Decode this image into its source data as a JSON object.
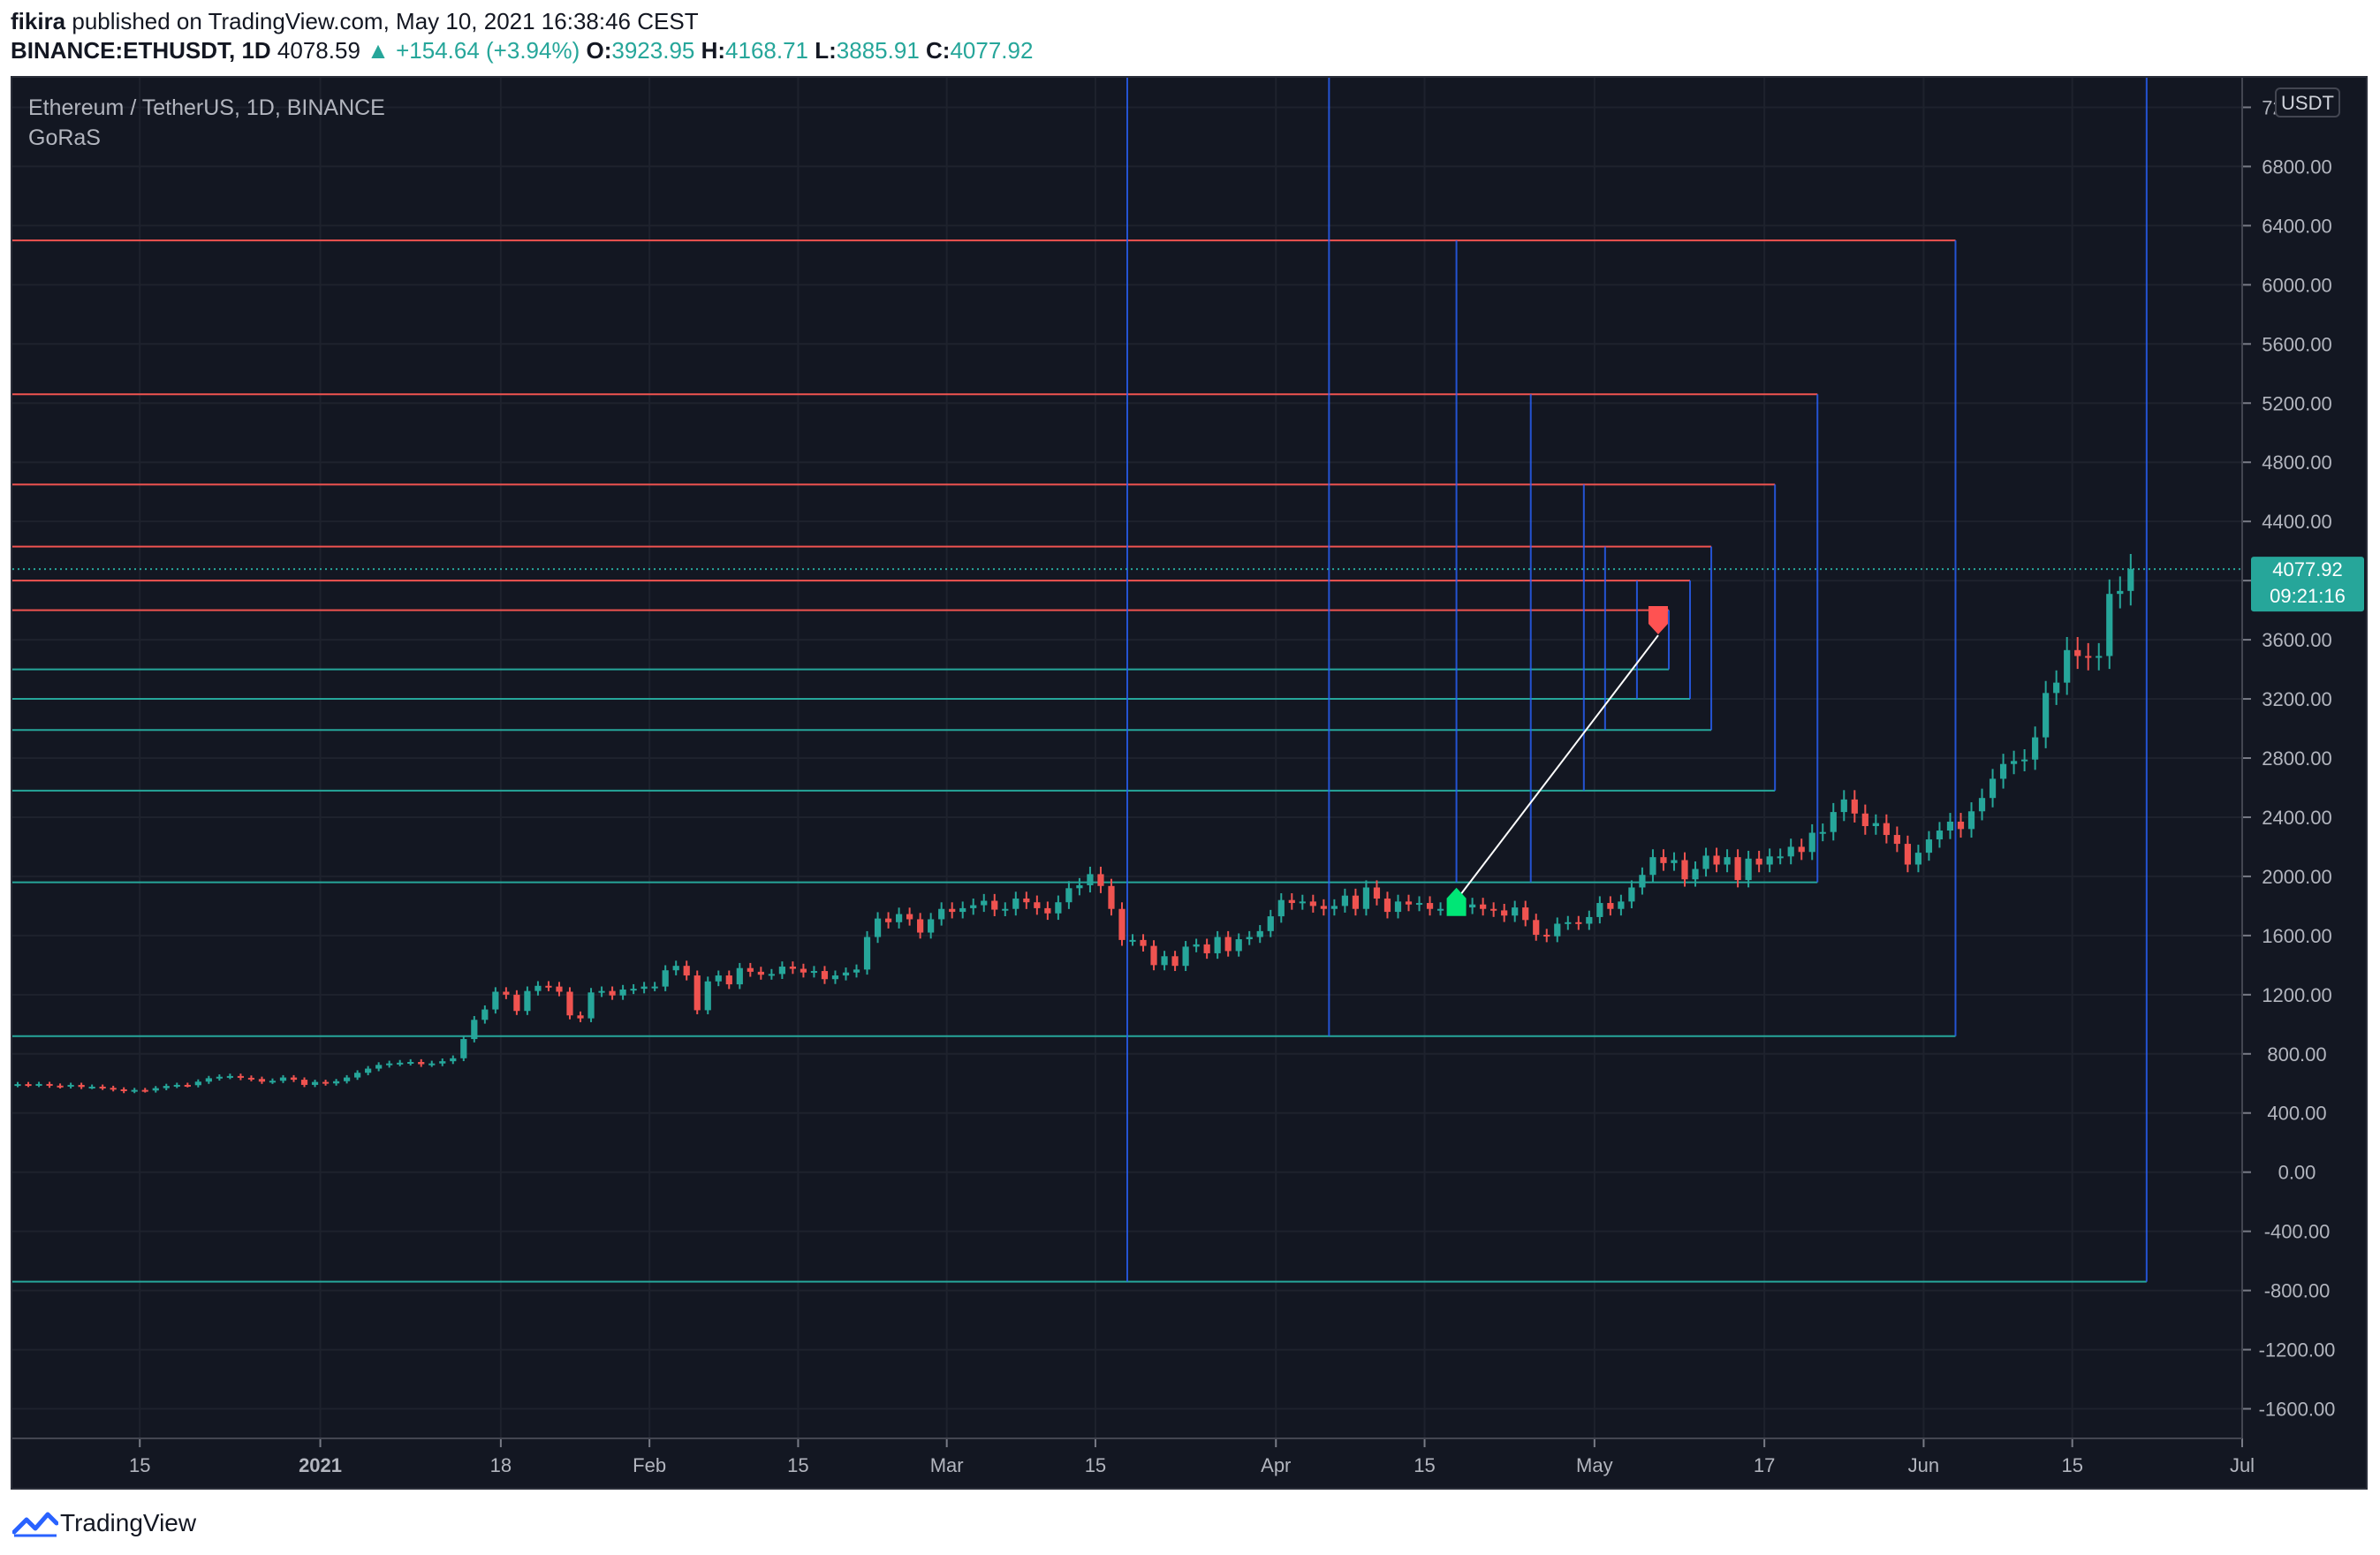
{
  "header": {
    "publisher": "fikira",
    "published_text": "published on TradingView.com, May 10, 2021 16:38:46 CEST",
    "symbol_line": "BINANCE:ETHUSDT, 1D",
    "last_price": "4078.59",
    "change": "▲ +154.64 (+3.94%)",
    "open_label": "O:",
    "open_value": "3923.95",
    "high_label": "H:",
    "high_value": "4168.71",
    "low_label": "L:",
    "low_value": "3885.91",
    "close_label": "C:",
    "close_value": "4077.92"
  },
  "legend": {
    "title": "Ethereum / TetherUS, 1D, BINANCE",
    "indicator": "GoRaS"
  },
  "price_axis": {
    "currency_label": "USDT",
    "current_price_label": "4077.92",
    "countdown_label": "09:21:16"
  },
  "footer": {
    "brand": "TradingView"
  },
  "colors": {
    "background": "#131722",
    "grid": "#1e222d",
    "up_candle": "#26a69a",
    "down_candle": "#ef5350",
    "support_line": "#26a69a",
    "resistance_line": "#ef5350",
    "vertical_line": "#2962ff",
    "price_badge": "#26a69a"
  },
  "chart_data": {
    "type": "candlestick",
    "title": "Ethereum / TetherUS, 1D, BINANCE",
    "ylim": [
      -1800,
      7400
    ],
    "y_ticks": [
      7200,
      6800,
      6400,
      6000,
      5600,
      5200,
      4800,
      4400,
      4000,
      3600,
      3200,
      2800,
      2400,
      2000,
      1600,
      1200,
      800,
      400,
      0,
      -400,
      -800,
      -1200,
      -1600
    ],
    "x_ticks": [
      {
        "label": "15",
        "date": "2020-12-15"
      },
      {
        "label": "2021",
        "date": "2021-01-01"
      },
      {
        "label": "18",
        "date": "2021-01-18"
      },
      {
        "label": "Feb",
        "date": "2021-02-01"
      },
      {
        "label": "15",
        "date": "2021-02-15"
      },
      {
        "label": "Mar",
        "date": "2021-03-01"
      },
      {
        "label": "15",
        "date": "2021-03-15"
      },
      {
        "label": "Apr",
        "date": "2021-04-01"
      },
      {
        "label": "15",
        "date": "2021-04-15"
      },
      {
        "label": "May",
        "date": "2021-05-01"
      },
      {
        "label": "17",
        "date": "2021-05-17"
      },
      {
        "label": "Jun",
        "date": "2021-06-01"
      },
      {
        "label": "15",
        "date": "2021-06-15"
      },
      {
        "label": "Jul",
        "date": "2021-07-01"
      }
    ],
    "xlim": [
      "2020-12-03",
      "2021-07-01"
    ],
    "start_date": "2020-12-03",
    "closes": [
      595,
      590,
      596,
      585,
      580,
      590,
      576,
      578,
      570,
      560,
      548,
      556,
      552,
      568,
      583,
      590,
      588,
      612,
      635,
      645,
      650,
      638,
      630,
      612,
      618,
      640,
      625,
      590,
      610,
      600,
      615,
      640,
      672,
      700,
      725,
      735,
      740,
      745,
      730,
      735,
      750,
      770,
      900,
      1030,
      1100,
      1220,
      1200,
      1090,
      1225,
      1260,
      1255,
      1220,
      1060,
      1040,
      1215,
      1225,
      1195,
      1235,
      1240,
      1255,
      1255,
      1365,
      1395,
      1330,
      1095,
      1290,
      1330,
      1270,
      1380,
      1355,
      1335,
      1340,
      1390,
      1375,
      1350,
      1360,
      1305,
      1330,
      1350,
      1370,
      1590,
      1715,
      1690,
      1745,
      1710,
      1620,
      1710,
      1780,
      1760,
      1785,
      1805,
      1835,
      1775,
      1780,
      1850,
      1825,
      1785,
      1750,
      1825,
      1920,
      1940,
      2015,
      1935,
      1780,
      1570,
      1570,
      1530,
      1400,
      1460,
      1395,
      1525,
      1540,
      1480,
      1590,
      1495,
      1575,
      1590,
      1630,
      1730,
      1840,
      1820,
      1830,
      1800,
      1780,
      1800,
      1870,
      1780,
      1925,
      1850,
      1760,
      1830,
      1810,
      1820,
      1780,
      1780,
      1820,
      1790,
      1810,
      1780,
      1770,
      1735,
      1790,
      1705,
      1605,
      1595,
      1680,
      1690,
      1680,
      1725,
      1820,
      1780,
      1830,
      1925,
      2010,
      2130,
      2090,
      2110,
      1980,
      2050,
      2140,
      2080,
      2130,
      1975,
      2120,
      2080,
      2135,
      2135,
      2200,
      2165,
      2295,
      2300,
      2435,
      2520,
      2425,
      2340,
      2360,
      2280,
      2220,
      2080,
      2160,
      2250,
      2310,
      2370,
      2320,
      2440,
      2530,
      2660,
      2760,
      2780,
      2790,
      2940,
      3240,
      3310,
      3530,
      3490,
      3480,
      3490,
      3910,
      3930,
      4078
    ],
    "sell_signal": {
      "date": "2021-05-07",
      "price": 3720
    },
    "buy_signal": {
      "date": "2021-04-18",
      "price": 1840
    },
    "trend_line": [
      {
        "date": "2021-04-18",
        "price": 1840
      },
      {
        "date": "2021-05-07",
        "price": 3630
      }
    ],
    "levels": [
      {
        "price": 6300,
        "color": "red",
        "start": "2020-12-03",
        "end": "2021-06-04"
      },
      {
        "price": 5260,
        "color": "red",
        "start": "2020-12-03",
        "end": "2021-05-22"
      },
      {
        "price": 4650,
        "color": "red",
        "start": "2020-12-03",
        "end": "2021-05-18"
      },
      {
        "price": 4230,
        "color": "red",
        "start": "2020-12-03",
        "end": "2021-05-12"
      },
      {
        "price": 4000,
        "color": "red",
        "start": "2020-12-03",
        "end": "2021-05-10"
      },
      {
        "price": 3800,
        "color": "red",
        "start": "2020-12-03",
        "end": "2021-05-08"
      },
      {
        "price": 3400,
        "color": "green",
        "start": "2020-12-03",
        "end": "2021-05-08"
      },
      {
        "price": 3200,
        "color": "green",
        "start": "2020-12-03",
        "end": "2021-05-10"
      },
      {
        "price": 2990,
        "color": "green",
        "start": "2020-12-03",
        "end": "2021-05-12"
      },
      {
        "price": 2580,
        "color": "green",
        "start": "2020-12-03",
        "end": "2021-05-18"
      },
      {
        "price": 1960,
        "color": "green",
        "start": "2020-12-03",
        "end": "2021-05-22"
      },
      {
        "price": 920,
        "color": "green",
        "start": "2020-12-03",
        "end": "2021-06-04"
      },
      {
        "price": -740,
        "color": "green",
        "start": "2020-12-03",
        "end": "2021-06-22"
      }
    ],
    "vertical_lines": [
      {
        "date": "2021-03-18",
        "top": 7400,
        "bottom": -740
      },
      {
        "date": "2021-04-06",
        "top": 7400,
        "bottom": 920
      },
      {
        "date": "2021-04-18",
        "top": 6300,
        "bottom": 1960
      },
      {
        "date": "2021-04-25",
        "top": 5260,
        "bottom": 1960
      },
      {
        "date": "2021-04-30",
        "top": 4650,
        "bottom": 2580
      },
      {
        "date": "2021-05-02",
        "top": 4230,
        "bottom": 2990
      },
      {
        "date": "2021-05-05",
        "top": 4000,
        "bottom": 3200
      },
      {
        "date": "2021-06-22",
        "top": 7400,
        "bottom": -740
      }
    ]
  }
}
